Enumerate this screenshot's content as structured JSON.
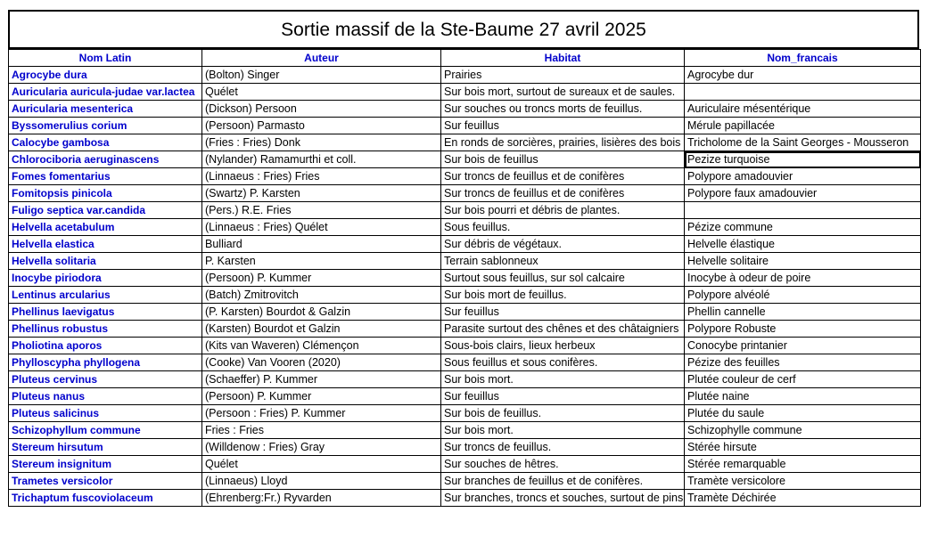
{
  "title": "Sortie massif de la Ste-Baume 27 avril 2025",
  "headers": {
    "latin": "Nom Latin",
    "auteur": "Auteur",
    "habitat": "Habitat",
    "nom_francais": "Nom_francais"
  },
  "selected_cell": {
    "row": 5,
    "column": "nom_francais"
  },
  "rows": [
    {
      "latin": "Agrocybe dura",
      "auteur": "(Bolton) Singer",
      "habitat": "Prairies",
      "nom": "Agrocybe dur"
    },
    {
      "latin": "Auricularia auricula-judae var.lactea",
      "auteur": "Quélet",
      "habitat": "Sur bois mort, surtout de sureaux et de saules.",
      "nom": ""
    },
    {
      "latin": "Auricularia mesenterica",
      "auteur": "(Dickson) Persoon",
      "habitat": "Sur souches ou troncs morts de feuillus.",
      "nom": "Auriculaire mésentérique"
    },
    {
      "latin": "Byssomerulius corium",
      "auteur": "(Persoon) Parmasto",
      "habitat": "Sur feuillus",
      "nom": "Mérule papillacée"
    },
    {
      "latin": "Calocybe gambosa",
      "auteur": "(Fries : Fries) Donk",
      "habitat": "En ronds de sorcières, prairies, lisières des bois",
      "nom": "Tricholome de la Saint Georges - Mousseron"
    },
    {
      "latin": "Chlorociboria aeruginascens",
      "auteur": "(Nylander) Ramamurthi et coll.",
      "habitat": "Sur bois de feuillus",
      "nom": "Pezize turquoise"
    },
    {
      "latin": "Fomes fomentarius",
      "auteur": "(Linnaeus : Fries) Fries",
      "habitat": "Sur troncs de feuillus et de conifères",
      "nom": "Polypore amadouvier"
    },
    {
      "latin": "Fomitopsis pinicola",
      "auteur": "(Swartz) P. Karsten",
      "habitat": "Sur troncs de feuillus et de conifères",
      "nom": "Polypore faux amadouvier"
    },
    {
      "latin": "Fuligo septica var.candida",
      "auteur": "(Pers.) R.E. Fries",
      "habitat": "Sur bois pourri et débris de plantes.",
      "nom": ""
    },
    {
      "latin": "Helvella acetabulum",
      "auteur": "(Linnaeus : Fries) Quélet",
      "habitat": "Sous feuillus.",
      "nom": "Pézize commune"
    },
    {
      "latin": "Helvella elastica",
      "auteur": "Bulliard",
      "habitat": "Sur débris de végétaux.",
      "nom": "Helvelle élastique"
    },
    {
      "latin": "Helvella solitaria",
      "auteur": "P. Karsten",
      "habitat": "Terrain sablonneux",
      "nom": "Helvelle solitaire"
    },
    {
      "latin": "Inocybe piriodora",
      "auteur": "(Persoon) P. Kummer",
      "habitat": "Surtout sous feuillus, sur sol calcaire",
      "nom": "Inocybe à odeur de poire"
    },
    {
      "latin": "Lentinus arcularius",
      "auteur": "(Batch) Zmitrovitch",
      "habitat": "Sur bois mort de feuillus.",
      "nom": "Polypore alvéolé"
    },
    {
      "latin": "Phellinus laevigatus",
      "auteur": "(P. Karsten) Bourdot & Galzin",
      "habitat": "Sur feuillus",
      "nom": "Phellin cannelle"
    },
    {
      "latin": "Phellinus robustus",
      "auteur": "(Karsten) Bourdot et Galzin",
      "habitat": "Parasite surtout des chênes et des châtaigniers",
      "nom": "Polypore Robuste"
    },
    {
      "latin": "Pholiotina aporos",
      "auteur": "(Kits van Waveren) Clémençon",
      "habitat": "Sous-bois clairs, lieux herbeux",
      "nom": "Conocybe printanier"
    },
    {
      "latin": "Phylloscypha phyllogena",
      "auteur": "(Cooke) Van Vooren (2020)",
      "habitat": "Sous feuillus et sous conifères.",
      "nom": "Pézize des feuilles"
    },
    {
      "latin": "Pluteus cervinus",
      "auteur": "(Schaeffer) P. Kummer",
      "habitat": "Sur bois mort.",
      "nom": "Plutée couleur de cerf"
    },
    {
      "latin": "Pluteus nanus",
      "auteur": "(Persoon) P. Kummer",
      "habitat": "Sur feuillus",
      "nom": "Plutée naine"
    },
    {
      "latin": "Pluteus salicinus",
      "auteur": "(Persoon : Fries) P. Kummer",
      "habitat": "Sur bois de feuillus.",
      "nom": "Plutée du saule"
    },
    {
      "latin": "Schizophyllum commune",
      "auteur": "Fries : Fries",
      "habitat": "Sur bois mort.",
      "nom": "Schizophylle commune"
    },
    {
      "latin": "Stereum hirsutum",
      "auteur": "(Willdenow : Fries) Gray",
      "habitat": "Sur troncs de feuillus.",
      "nom": "Stérée hirsute"
    },
    {
      "latin": "Stereum insignitum",
      "auteur": "Quélet",
      "habitat": "Sur souches de hêtres.",
      "nom": "Stérée remarquable"
    },
    {
      "latin": "Trametes versicolor",
      "auteur": "(Linnaeus) Lloyd",
      "habitat": "Sur branches de feuillus et de conifères.",
      "nom": "Tramète versicolore"
    },
    {
      "latin": "Trichaptum fuscoviolaceum",
      "auteur": "(Ehrenberg:Fr.) Ryvarden",
      "habitat": "Sur branches, troncs et souches, surtout de pins",
      "nom": "Tramète Déchirée"
    }
  ]
}
